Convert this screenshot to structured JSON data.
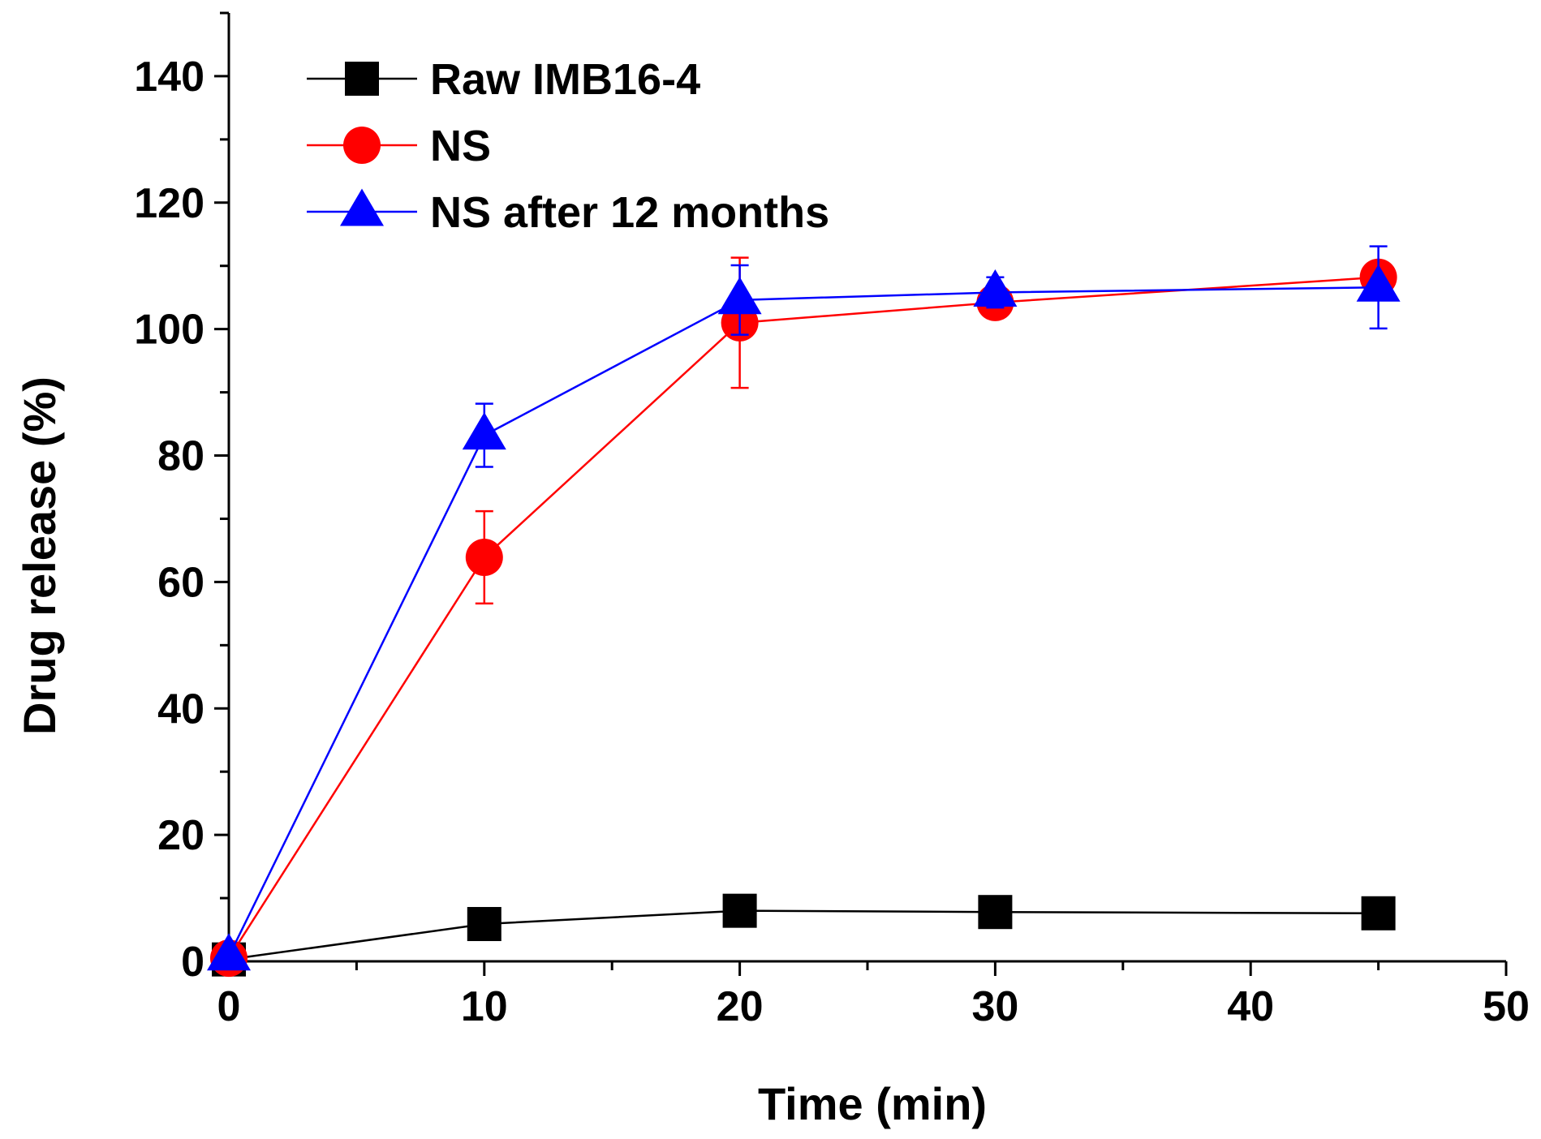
{
  "chart_data": {
    "type": "line",
    "title": "",
    "xlabel": "Time (min)",
    "ylabel": "Drug release (%)",
    "xlim": [
      0,
      50
    ],
    "ylim": [
      0,
      150
    ],
    "x_ticks": [
      0,
      10,
      20,
      30,
      40,
      50
    ],
    "y_ticks": [
      0,
      20,
      40,
      60,
      80,
      100,
      120,
      140
    ],
    "x_minor_step": 5,
    "y_minor_step": 10,
    "grid": false,
    "legend_position": "top-left",
    "series": [
      {
        "name": "Raw IMB16-4",
        "color": "#000000",
        "marker": "square",
        "x": [
          0,
          10,
          20,
          30,
          45
        ],
        "values": [
          0.3,
          5.9,
          8.0,
          7.8,
          7.6
        ],
        "errors": [
          0,
          0,
          0,
          0,
          0
        ]
      },
      {
        "name": "NS",
        "color": "#ff0000",
        "marker": "circle",
        "x": [
          0,
          10,
          20,
          30,
          45
        ],
        "values": [
          0.5,
          63.9,
          101.0,
          104.2,
          108.2
        ],
        "errors": [
          0,
          7.3,
          10.3,
          1.2,
          1.5
        ]
      },
      {
        "name": "NS after 12 months",
        "color": "#0000ff",
        "marker": "triangle",
        "x": [
          0,
          10,
          20,
          30,
          45
        ],
        "values": [
          0.8,
          83.2,
          104.6,
          105.8,
          106.6
        ],
        "errors": [
          0,
          5.0,
          5.5,
          2.4,
          6.5
        ]
      }
    ]
  }
}
